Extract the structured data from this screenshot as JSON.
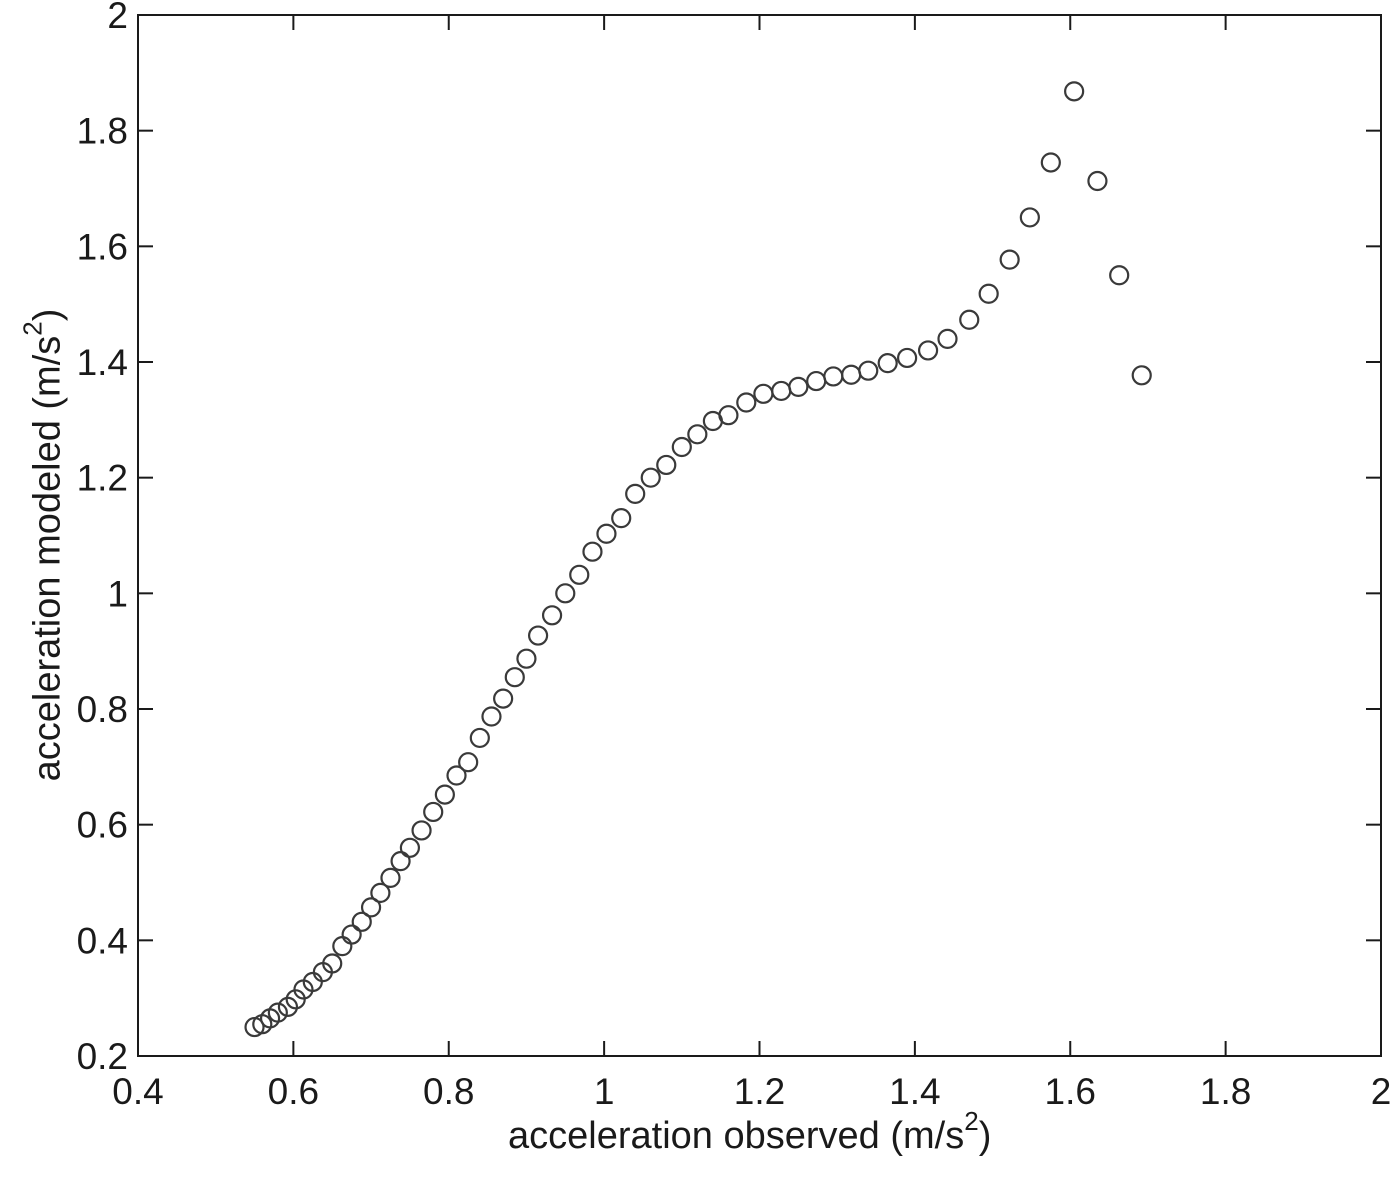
{
  "chart_data": {
    "type": "scatter",
    "xlabel": {
      "prefix": "acceleration observed (m/s",
      "sup": "2",
      "suffix": ")"
    },
    "ylabel": {
      "prefix": "acceleration modeled (m/s",
      "sup": "2",
      "suffix": ")"
    },
    "xlim": [
      0.4,
      2
    ],
    "ylim": [
      0.2,
      2
    ],
    "xticks": [
      "0.4",
      "0.6",
      "0.8",
      "1",
      "1.2",
      "1.4",
      "1.6",
      "1.8",
      "2"
    ],
    "yticks": [
      "0.2",
      "0.4",
      "0.6",
      "0.8",
      "1",
      "1.2",
      "1.4",
      "1.6",
      "1.8",
      "2"
    ],
    "grid": false,
    "marker": "open-circle",
    "marker_color": "#3a3a3a",
    "series": [
      {
        "points": [
          [
            0.55,
            0.25
          ],
          [
            0.56,
            0.255
          ],
          [
            0.57,
            0.265
          ],
          [
            0.58,
            0.275
          ],
          [
            0.593,
            0.285
          ],
          [
            0.603,
            0.298
          ],
          [
            0.613,
            0.315
          ],
          [
            0.625,
            0.328
          ],
          [
            0.638,
            0.345
          ],
          [
            0.65,
            0.36
          ],
          [
            0.663,
            0.39
          ],
          [
            0.675,
            0.41
          ],
          [
            0.688,
            0.432
          ],
          [
            0.7,
            0.457
          ],
          [
            0.712,
            0.482
          ],
          [
            0.725,
            0.508
          ],
          [
            0.738,
            0.537
          ],
          [
            0.75,
            0.56
          ],
          [
            0.765,
            0.59
          ],
          [
            0.78,
            0.622
          ],
          [
            0.795,
            0.652
          ],
          [
            0.81,
            0.685
          ],
          [
            0.825,
            0.708
          ],
          [
            0.84,
            0.75
          ],
          [
            0.855,
            0.787
          ],
          [
            0.87,
            0.818
          ],
          [
            0.885,
            0.855
          ],
          [
            0.9,
            0.887
          ],
          [
            0.915,
            0.927
          ],
          [
            0.933,
            0.962
          ],
          [
            0.95,
            1.0
          ],
          [
            0.968,
            1.032
          ],
          [
            0.985,
            1.072
          ],
          [
            1.003,
            1.103
          ],
          [
            1.022,
            1.13
          ],
          [
            1.04,
            1.172
          ],
          [
            1.06,
            1.2
          ],
          [
            1.08,
            1.222
          ],
          [
            1.1,
            1.253
          ],
          [
            1.12,
            1.275
          ],
          [
            1.14,
            1.298
          ],
          [
            1.16,
            1.308
          ],
          [
            1.183,
            1.33
          ],
          [
            1.205,
            1.345
          ],
          [
            1.228,
            1.35
          ],
          [
            1.25,
            1.357
          ],
          [
            1.273,
            1.367
          ],
          [
            1.295,
            1.375
          ],
          [
            1.318,
            1.378
          ],
          [
            1.34,
            1.385
          ],
          [
            1.365,
            1.398
          ],
          [
            1.39,
            1.407
          ],
          [
            1.417,
            1.42
          ],
          [
            1.442,
            1.44
          ],
          [
            1.47,
            1.473
          ],
          [
            1.495,
            1.518
          ],
          [
            1.522,
            1.577
          ],
          [
            1.548,
            1.65
          ],
          [
            1.575,
            1.745
          ],
          [
            1.605,
            1.868
          ],
          [
            1.635,
            1.713
          ],
          [
            1.663,
            1.55
          ],
          [
            1.692,
            1.377
          ]
        ]
      }
    ]
  }
}
